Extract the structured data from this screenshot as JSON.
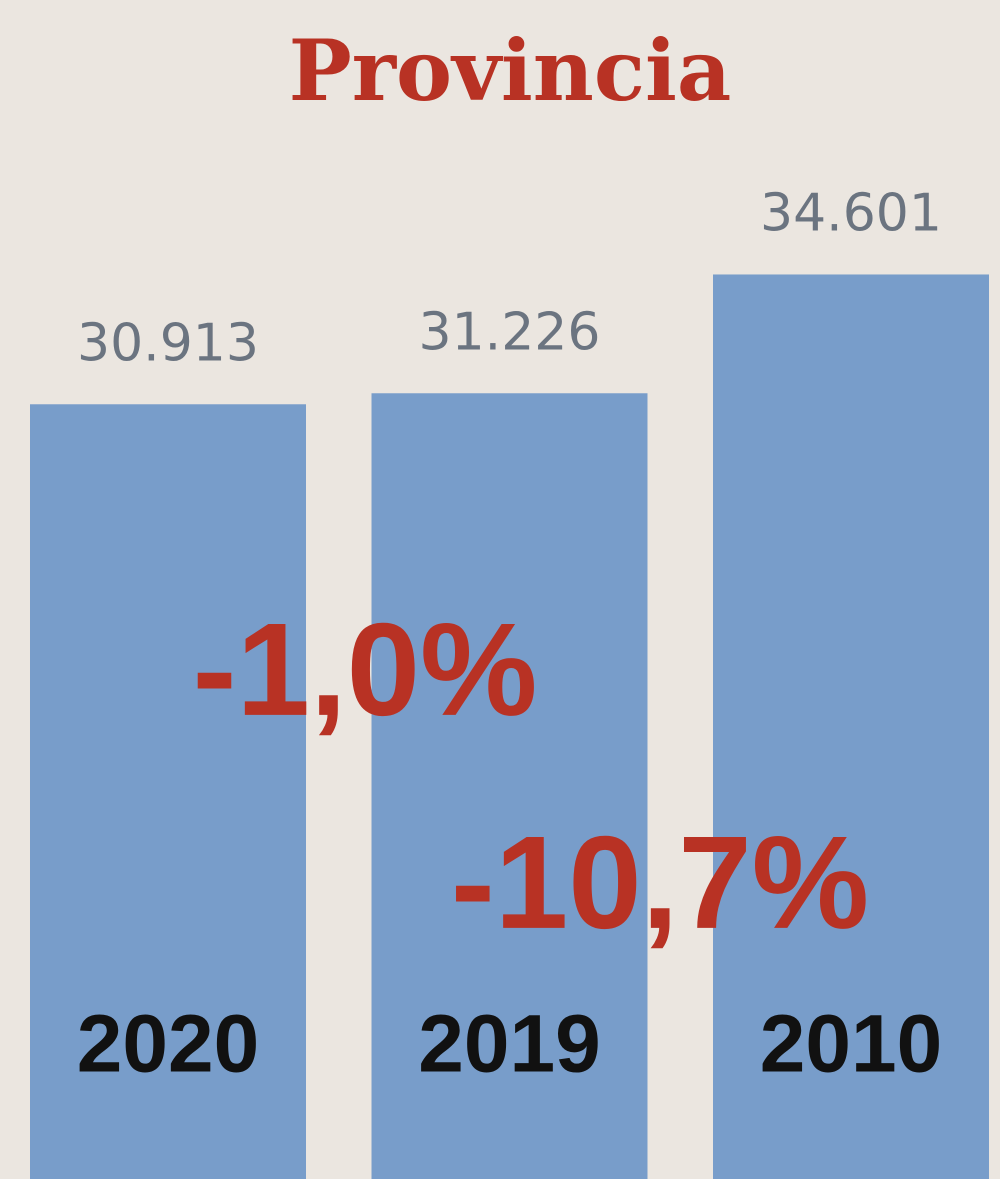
{
  "chart_data": {
    "type": "bar",
    "title": "Provincia",
    "categories": [
      "2020",
      "2019",
      "2010"
    ],
    "values": [
      30913,
      31226,
      34601
    ],
    "value_labels": [
      "30.913",
      "31.226",
      "34.601"
    ],
    "color": "#789dca",
    "ylim": [
      8900,
      42400
    ],
    "annotations": [
      "-1,0%",
      "-10,7%"
    ]
  }
}
